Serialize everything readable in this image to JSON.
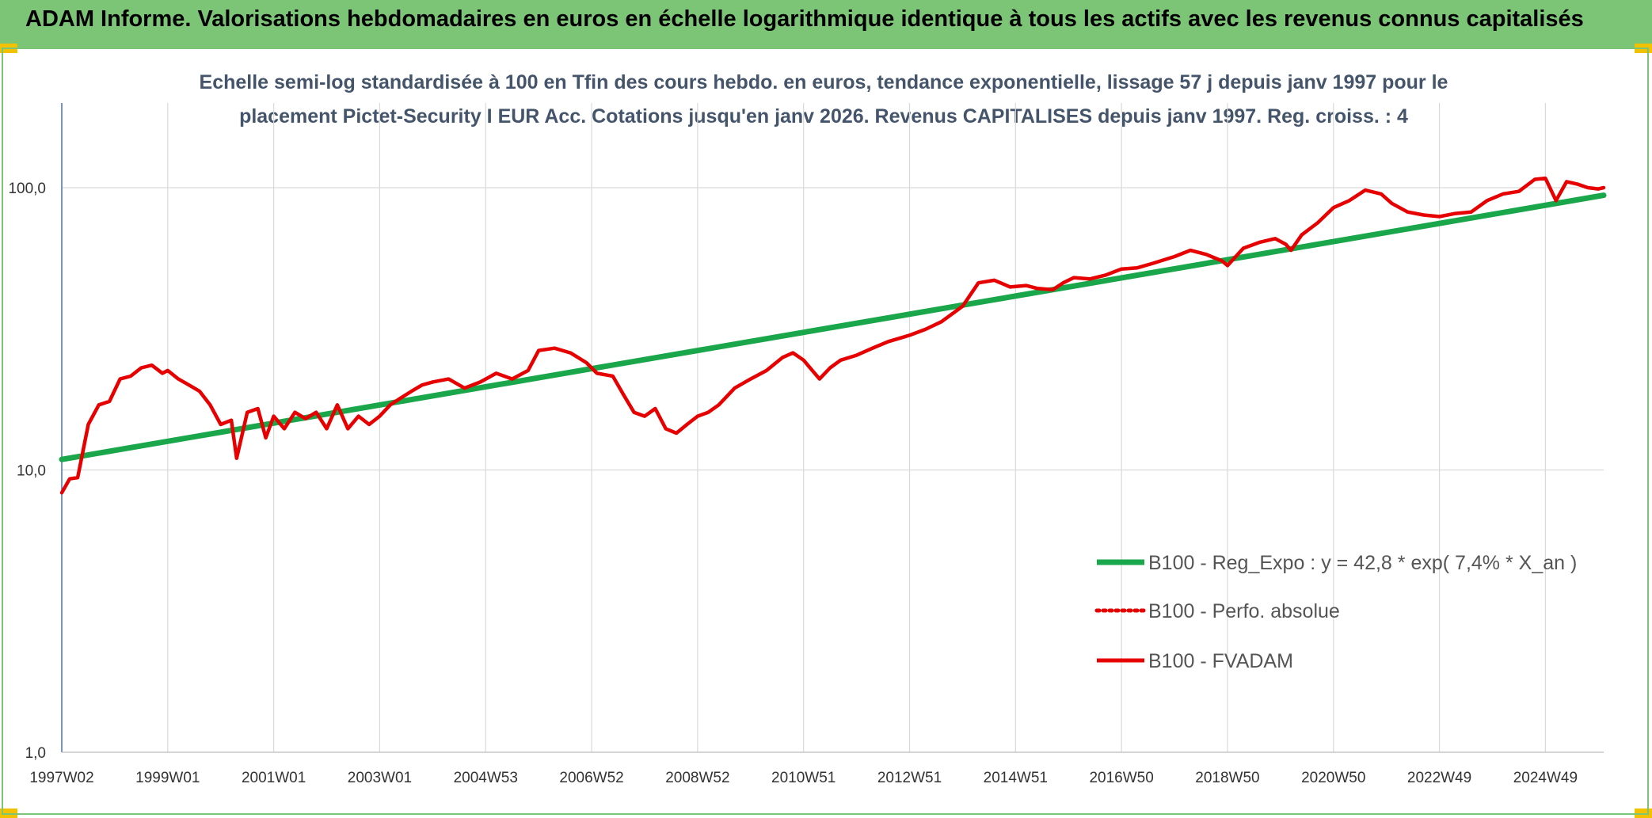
{
  "banner": {
    "title": "ADAM Informe. Valorisations hebdomadaires en euros en échelle logarithmique identique à tous les actifs avec les revenus connus capitalisés"
  },
  "colors": {
    "banner": "#7cc576",
    "regression": "#1aa64a",
    "fvadam": "#e60000",
    "perfo": "#e60000",
    "title": "#44546a"
  },
  "chart_data": {
    "type": "line",
    "title_line1": "Echelle semi-log standardisée à 100 en Tfin des cours hebdo. en euros, tendance exponentielle, lissage 57 j depuis janv 1997 pour le",
    "title_line2": "placement Pictet-Security I EUR Acc. Cotations jusqu'en janv 2026. Revenus CAPITALISES depuis janv 1997. Reg. croiss. : 4",
    "y_scale": "log",
    "ylim": [
      1,
      100
    ],
    "xlim": [
      1997.0,
      2026.1
    ],
    "y_ticks": [
      {
        "value": 1,
        "label": "1,0"
      },
      {
        "value": 10,
        "label": "10,0"
      },
      {
        "value": 100,
        "label": "100,0"
      }
    ],
    "x_ticks": [
      {
        "value": 1997.0,
        "label": "1997W02"
      },
      {
        "value": 1999.0,
        "label": "1999W01"
      },
      {
        "value": 2001.0,
        "label": "2001W01"
      },
      {
        "value": 2003.0,
        "label": "2003W01"
      },
      {
        "value": 2005.0,
        "label": "2004W53"
      },
      {
        "value": 2007.0,
        "label": "2006W52"
      },
      {
        "value": 2009.0,
        "label": "2008W52"
      },
      {
        "value": 2011.0,
        "label": "2010W51"
      },
      {
        "value": 2013.0,
        "label": "2012W51"
      },
      {
        "value": 2015.0,
        "label": "2014W51"
      },
      {
        "value": 2017.0,
        "label": "2016W50"
      },
      {
        "value": 2019.0,
        "label": "2018W50"
      },
      {
        "value": 2021.0,
        "label": "2020W50"
      },
      {
        "value": 2023.0,
        "label": "2022W49"
      },
      {
        "value": 2025.0,
        "label": "2024W49"
      }
    ],
    "grid": true,
    "legend_position": "bottom-right",
    "series": [
      {
        "name": "B100 - Reg_Expo : y = 42,8 * exp( 7,4% *  X_an )",
        "style": "solid-thick",
        "color": "#1aa64a",
        "x": [
          1997.0,
          2026.1
        ],
        "y": [
          10.9,
          94
        ]
      },
      {
        "name": "B100 - Perfo. absolue",
        "style": "dotted",
        "color": "#e60000",
        "x": [],
        "y": []
      },
      {
        "name": "B100 - FVADAM",
        "style": "solid",
        "color": "#e60000",
        "x": [
          1997.0,
          1997.15,
          1997.3,
          1997.5,
          1997.7,
          1997.9,
          1998.1,
          1998.3,
          1998.5,
          1998.7,
          1998.9,
          1999.0,
          1999.2,
          1999.4,
          1999.6,
          1999.8,
          2000.0,
          2000.2,
          2000.3,
          2000.5,
          2000.7,
          2000.85,
          2001.0,
          2001.2,
          2001.4,
          2001.6,
          2001.8,
          2002.0,
          2002.2,
          2002.4,
          2002.6,
          2002.8,
          2003.0,
          2003.2,
          2003.4,
          2003.6,
          2003.8,
          2004.0,
          2004.3,
          2004.6,
          2004.9,
          2005.2,
          2005.5,
          2005.8,
          2006.0,
          2006.3,
          2006.6,
          2006.9,
          2007.1,
          2007.4,
          2007.6,
          2007.8,
          2008.0,
          2008.2,
          2008.4,
          2008.6,
          2008.8,
          2009.0,
          2009.2,
          2009.4,
          2009.7,
          2010.0,
          2010.3,
          2010.6,
          2010.8,
          2011.0,
          2011.3,
          2011.5,
          2011.7,
          2012.0,
          2012.3,
          2012.6,
          2013.0,
          2013.3,
          2013.6,
          2014.0,
          2014.3,
          2014.6,
          2014.9,
          2015.2,
          2015.4,
          2015.7,
          2015.9,
          2016.1,
          2016.4,
          2016.7,
          2017.0,
          2017.3,
          2017.6,
          2018.0,
          2018.3,
          2018.6,
          2018.9,
          2019.0,
          2019.3,
          2019.6,
          2019.9,
          2020.1,
          2020.2,
          2020.4,
          2020.7,
          2021.0,
          2021.3,
          2021.6,
          2021.9,
          2022.1,
          2022.4,
          2022.7,
          2023.0,
          2023.3,
          2023.6,
          2023.9,
          2024.2,
          2024.5,
          2024.8,
          2025.0,
          2025.2,
          2025.4,
          2025.6,
          2025.8,
          2026.0,
          2026.1
        ],
        "y": [
          8.3,
          9.3,
          9.4,
          14.5,
          17,
          17.5,
          21,
          21.5,
          23,
          23.5,
          22,
          22.5,
          21,
          20,
          19,
          17,
          14.5,
          15,
          11,
          16,
          16.5,
          13,
          15.5,
          14,
          16,
          15.2,
          16,
          14,
          17,
          14,
          15.5,
          14.5,
          15.5,
          17,
          18,
          19,
          20,
          20.5,
          21,
          19.5,
          20.5,
          22,
          21,
          22.5,
          26.5,
          27,
          26,
          24,
          22,
          21.5,
          18.5,
          16,
          15.5,
          16.5,
          14,
          13.5,
          14.5,
          15.5,
          16,
          17,
          19.5,
          21,
          22.5,
          25,
          26,
          24.5,
          21,
          23,
          24.5,
          25.5,
          27,
          28.5,
          30,
          31.5,
          33.5,
          38,
          46,
          47,
          44.5,
          45,
          44,
          43.5,
          46,
          48,
          47.5,
          49,
          51.5,
          52,
          54,
          57,
          60,
          58,
          55,
          53,
          61,
          64,
          66,
          63,
          60,
          68,
          75,
          85,
          90,
          98,
          95,
          88,
          82,
          80,
          79,
          81,
          82,
          90,
          95,
          97,
          107,
          108,
          90,
          105,
          103,
          100,
          99,
          100
        ]
      }
    ]
  }
}
